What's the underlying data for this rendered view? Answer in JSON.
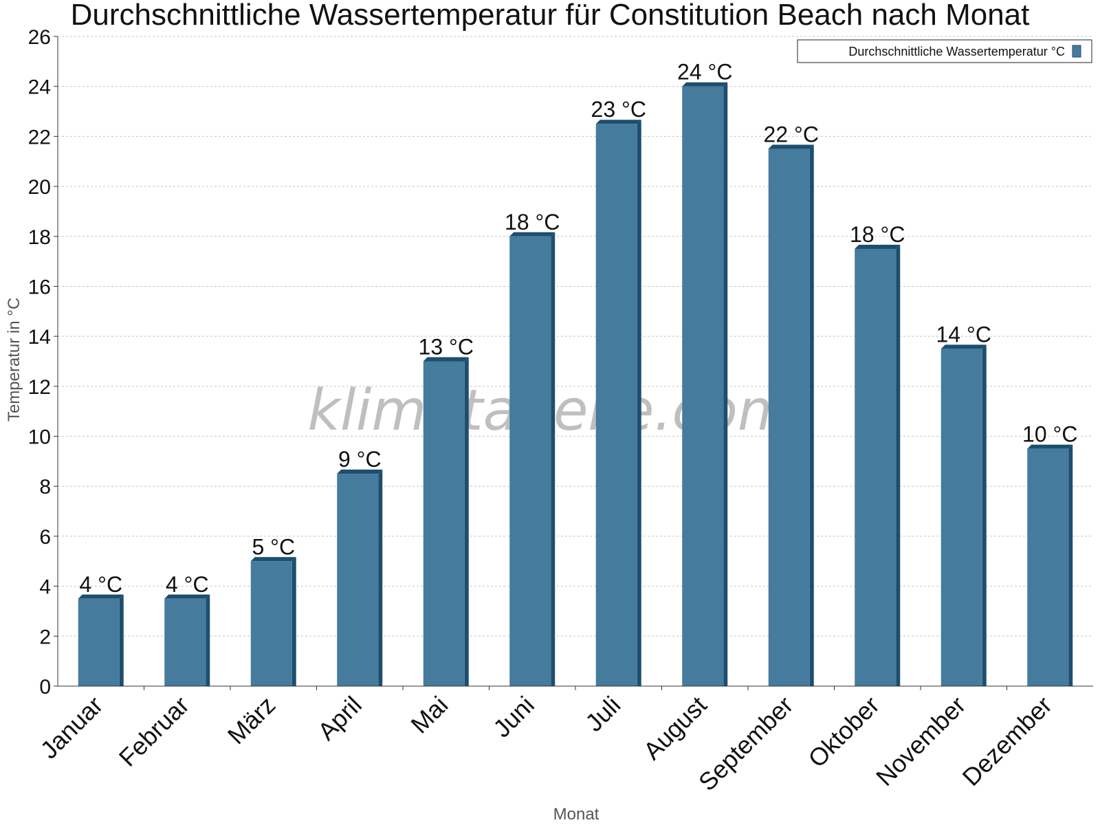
{
  "chart_data": {
    "type": "bar",
    "title": "Durchschnittliche Wassertemperatur für Constitution Beach nach Monat",
    "xlabel": "Monat",
    "ylabel": "Temperatur in °C",
    "ylim": [
      0,
      26
    ],
    "yticks": [
      0,
      2,
      4,
      6,
      8,
      10,
      12,
      14,
      16,
      18,
      20,
      22,
      24,
      26
    ],
    "grid": true,
    "legend_position": "top-right",
    "categories": [
      "Januar",
      "Februar",
      "März",
      "April",
      "Mai",
      "Juni",
      "Juli",
      "August",
      "September",
      "Oktober",
      "November",
      "Dezember"
    ],
    "series": [
      {
        "name": "Durchschnittliche Wassertemperatur °C",
        "values": [
          3.5,
          3.5,
          5,
          8.5,
          13,
          18,
          22.5,
          24,
          21.5,
          17.5,
          13.5,
          9.5
        ],
        "labels": [
          "4 °C",
          "4 °C",
          "5 °C",
          "9 °C",
          "13 °C",
          "18 °C",
          "23 °C",
          "24 °C",
          "22 °C",
          "18 °C",
          "14 °C",
          "10 °C"
        ],
        "color": "#457b9d",
        "shade_color": "#1d4e6e"
      }
    ],
    "watermark": "klimatabelle.com"
  }
}
